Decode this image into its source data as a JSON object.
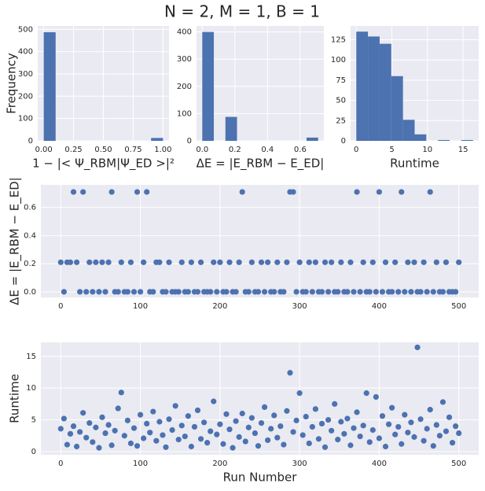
{
  "title": "N = 2, M = 1, B = 1",
  "chart_data": [
    {
      "type": "histogram",
      "xlabel": "1 − |< Ψ_RBM|Ψ_ED >|²",
      "ylabel": "Frequency",
      "color": "#4c72b0",
      "grid": true,
      "bins": [
        0,
        0.1,
        0.2,
        0.3,
        0.4,
        0.5,
        0.6,
        0.7,
        0.8,
        0.9,
        1.0
      ],
      "values": [
        487,
        0,
        0,
        0,
        0,
        0,
        0,
        0,
        0,
        13
      ],
      "xlim": [
        -0.05,
        1.05
      ],
      "ylim": [
        0,
        515
      ],
      "xticks": [
        {
          "value": 0,
          "label": "0.00"
        },
        {
          "value": 0.25,
          "label": "0.25"
        },
        {
          "value": 0.5,
          "label": "0.50"
        },
        {
          "value": 0.75,
          "label": "0.75"
        },
        {
          "value": 1,
          "label": "1.00"
        }
      ],
      "yticks": [
        0,
        100,
        200,
        300,
        400,
        500
      ]
    },
    {
      "type": "histogram",
      "xlabel": "ΔE = |E_RBM − E_ED|",
      "color": "#4c72b0",
      "grid": true,
      "bins": [
        0,
        0.071,
        0.142,
        0.213,
        0.284,
        0.355,
        0.426,
        0.497,
        0.568,
        0.639,
        0.71
      ],
      "values": [
        400,
        0,
        88,
        0,
        0,
        0,
        0,
        0,
        0,
        12
      ],
      "xlim": [
        -0.035,
        0.745
      ],
      "ylim": [
        0,
        422
      ],
      "xticks": [
        {
          "value": 0,
          "label": "0.0"
        },
        {
          "value": 0.2,
          "label": "0.2"
        },
        {
          "value": 0.4,
          "label": "0.4"
        },
        {
          "value": 0.6,
          "label": "0.6"
        }
      ],
      "yticks": [
        0,
        100,
        200,
        300,
        400
      ]
    },
    {
      "type": "histogram",
      "xlabel": "Runtime",
      "color": "#4c72b0",
      "grid": true,
      "bins": [
        0,
        1.64,
        3.28,
        4.92,
        6.56,
        8.2,
        9.84,
        11.48,
        13.12,
        14.76,
        16.4
      ],
      "values": [
        135,
        129,
        120,
        80,
        26,
        8,
        0,
        1,
        0,
        1
      ],
      "xlim": [
        -0.8,
        17.2
      ],
      "ylim": [
        0,
        142
      ],
      "xticks": [
        0,
        5,
        10,
        15
      ],
      "yticks": [
        0,
        25,
        50,
        75,
        100,
        125
      ]
    },
    {
      "type": "scatter",
      "ylabel": "ΔE = |E_RBM − E_ED|",
      "color": "#4c72b0",
      "grid": true,
      "x": [
        0,
        4,
        8,
        12,
        16,
        20,
        24,
        28,
        32,
        36,
        40,
        44,
        48,
        52,
        56,
        60,
        64,
        68,
        72,
        76,
        80,
        84,
        88,
        92,
        96,
        100,
        104,
        108,
        112,
        116,
        120,
        124,
        128,
        132,
        136,
        140,
        144,
        148,
        152,
        156,
        160,
        164,
        168,
        172,
        176,
        180,
        184,
        188,
        192,
        196,
        200,
        204,
        208,
        212,
        216,
        220,
        224,
        228,
        232,
        236,
        240,
        244,
        248,
        252,
        256,
        260,
        264,
        268,
        272,
        276,
        280,
        284,
        288,
        292,
        296,
        300,
        304,
        308,
        312,
        316,
        320,
        324,
        328,
        332,
        336,
        340,
        344,
        348,
        352,
        356,
        360,
        364,
        368,
        372,
        376,
        380,
        384,
        388,
        392,
        396,
        400,
        404,
        408,
        412,
        416,
        420,
        424,
        428,
        432,
        436,
        440,
        444,
        448,
        452,
        456,
        460,
        464,
        468,
        472,
        476,
        480,
        484,
        488,
        492,
        496,
        500
      ],
      "values": [
        0.21,
        0,
        0.21,
        0.21,
        0.71,
        0.21,
        0,
        0.71,
        0,
        0.21,
        0,
        0.21,
        0,
        0.21,
        0,
        0.21,
        0.71,
        0,
        0,
        0.21,
        0,
        0,
        0.21,
        0,
        0.71,
        0,
        0.21,
        0.71,
        0,
        0,
        0.21,
        0.21,
        0,
        0,
        0.21,
        0,
        0,
        0,
        0.21,
        0,
        0,
        0.21,
        0,
        0,
        0.21,
        0,
        0,
        0,
        0.21,
        0,
        0.21,
        0,
        0,
        0.21,
        0,
        0,
        0.21,
        0.71,
        0,
        0,
        0.21,
        0,
        0,
        0.21,
        0,
        0.21,
        0,
        0,
        0.21,
        0,
        0,
        0.21,
        0.71,
        0.71,
        0,
        0.21,
        0,
        0,
        0.21,
        0,
        0.21,
        0,
        0,
        0.21,
        0,
        0.21,
        0,
        0,
        0.21,
        0,
        0,
        0.21,
        0,
        0.71,
        0,
        0.21,
        0,
        0,
        0.21,
        0,
        0.71,
        0,
        0.21,
        0,
        0,
        0.21,
        0,
        0.71,
        0,
        0.21,
        0,
        0.21,
        0,
        0,
        0.21,
        0,
        0.71,
        0,
        0.21,
        0,
        0,
        0.21,
        0,
        0,
        0,
        0.21
      ],
      "xlim": [
        -25,
        525
      ],
      "ylim": [
        -0.04,
        0.76
      ],
      "xticks": [
        0,
        100,
        200,
        300,
        400,
        500
      ],
      "yticks": [
        {
          "value": 0,
          "label": "0.0"
        },
        {
          "value": 0.2,
          "label": "0.2"
        },
        {
          "value": 0.4,
          "label": "0.4"
        },
        {
          "value": 0.6,
          "label": "0.6"
        }
      ]
    },
    {
      "type": "scatter",
      "xlabel": "Run Number",
      "ylabel": "Runtime",
      "color": "#4c72b0",
      "grid": true,
      "x": [
        0,
        4,
        8,
        12,
        16,
        20,
        24,
        28,
        32,
        36,
        40,
        44,
        48,
        52,
        56,
        60,
        64,
        68,
        72,
        76,
        80,
        84,
        88,
        92,
        96,
        100,
        104,
        108,
        112,
        116,
        120,
        124,
        128,
        132,
        136,
        140,
        144,
        148,
        152,
        156,
        160,
        164,
        168,
        172,
        176,
        180,
        184,
        188,
        192,
        196,
        200,
        204,
        208,
        212,
        216,
        220,
        224,
        228,
        232,
        236,
        240,
        244,
        248,
        252,
        256,
        260,
        264,
        268,
        272,
        276,
        280,
        284,
        288,
        292,
        296,
        300,
        304,
        308,
        312,
        316,
        320,
        324,
        328,
        332,
        336,
        340,
        344,
        348,
        352,
        356,
        360,
        364,
        368,
        372,
        376,
        380,
        384,
        388,
        392,
        396,
        400,
        404,
        408,
        412,
        416,
        420,
        424,
        428,
        432,
        436,
        440,
        444,
        448,
        452,
        456,
        460,
        464,
        468,
        472,
        476,
        480,
        484,
        488,
        492,
        496,
        500
      ],
      "values": [
        3.6,
        5.2,
        1.1,
        2.8,
        4.0,
        0.8,
        3.1,
        6.1,
        2.2,
        4.5,
        1.5,
        3.8,
        0.6,
        5.4,
        2.9,
        4.2,
        1.0,
        3.3,
        6.8,
        9.3,
        2.5,
        4.9,
        1.3,
        3.7,
        0.9,
        5.8,
        2.1,
        4.4,
        3.0,
        6.3,
        1.7,
        4.7,
        2.6,
        0.7,
        5.1,
        3.4,
        7.2,
        1.9,
        4.1,
        2.4,
        5.6,
        0.8,
        3.9,
        6.5,
        2.0,
        4.6,
        1.4,
        3.2,
        7.9,
        2.7,
        4.3,
        1.2,
        5.9,
        3.5,
        0.6,
        4.8,
        2.3,
        6.0,
        1.6,
        3.8,
        5.3,
        2.9,
        0.9,
        4.5,
        7.0,
        1.8,
        3.6,
        5.7,
        2.2,
        4.0,
        1.1,
        6.4,
        12.4,
        3.1,
        4.9,
        9.2,
        2.6,
        5.5,
        1.3,
        3.9,
        6.7,
        2.0,
        4.4,
        0.7,
        5.0,
        3.3,
        7.5,
        1.9,
        4.7,
        2.8,
        5.2,
        1.0,
        3.7,
        6.2,
        2.4,
        4.1,
        9.2,
        1.5,
        3.4,
        8.6,
        2.1,
        5.6,
        0.8,
        4.3,
        6.9,
        2.7,
        3.9,
        1.2,
        5.8,
        3.0,
        4.6,
        2.3,
        16.4,
        5.1,
        1.7,
        3.6,
        6.6,
        0.9,
        4.2,
        2.5,
        7.8,
        3.2,
        5.4,
        1.4,
        4.0,
        2.9
      ],
      "xlim": [
        -25,
        525
      ],
      "ylim": [
        -0.5,
        17.2
      ],
      "xticks": [
        0,
        100,
        200,
        300,
        400,
        500
      ],
      "yticks": [
        0,
        5,
        10,
        15
      ]
    }
  ]
}
